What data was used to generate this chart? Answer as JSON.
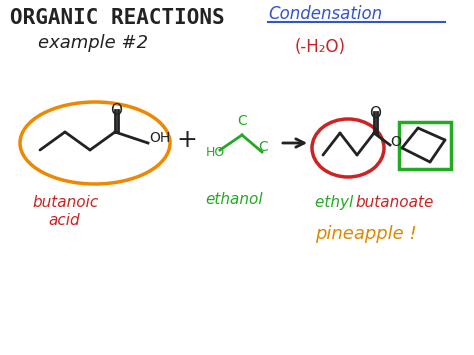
{
  "bg_color": "#ffffff",
  "title1": "ORGANIC REACTIONS",
  "title2": "example #2",
  "title_color": "#222222",
  "condensation_text": "Condensation",
  "condensation_color": "#3355cc",
  "h2o_text": "(-H₂O)",
  "h2o_color": "#cc2222",
  "butanoic_label1": "butanoic",
  "butanoic_label2": "acid",
  "butanoic_color": "#cc2222",
  "ethanol_label": "ethanol",
  "ethanol_color": "#22aa22",
  "pineapple_label": "pineapple !",
  "pineapple_color": "#dd8800",
  "orange_circle_color": "#ee8800",
  "dark": "#222222"
}
